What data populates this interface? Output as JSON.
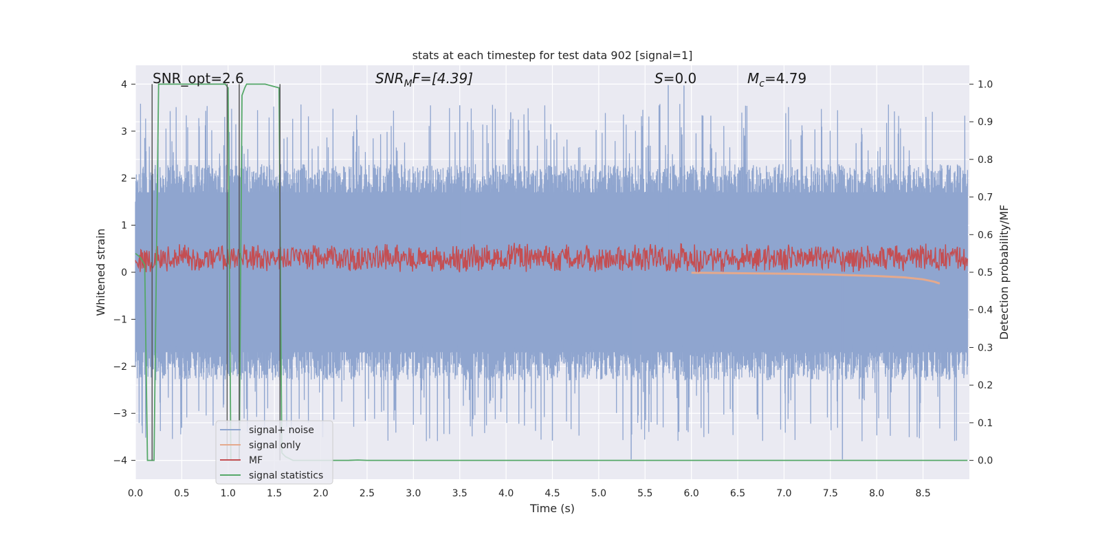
{
  "chart_data": {
    "type": "line",
    "title": "stats at each timestep for test data 902 [signal=1]",
    "xlabel": "Time (s)",
    "ylabel": "Whitened strain",
    "y2label": "Detection probability/MF",
    "xlim": [
      0.0,
      9.0
    ],
    "ylim": [
      -4.4,
      4.4
    ],
    "y2lim": [
      -0.05,
      1.05
    ],
    "grid": true,
    "legend_position": "lower-left",
    "x_ticks": [
      "0.0",
      "0.5",
      "1.0",
      "1.5",
      "2.0",
      "2.5",
      "3.0",
      "3.5",
      "4.0",
      "4.5",
      "5.0",
      "5.5",
      "6.0",
      "6.5",
      "7.0",
      "7.5",
      "8.0",
      "8.5"
    ],
    "y_ticks": [
      "−4",
      "−3",
      "−2",
      "−1",
      "0",
      "1",
      "2",
      "3",
      "4"
    ],
    "y2_ticks": [
      "0.0",
      "0.1",
      "0.2",
      "0.3",
      "0.4",
      "0.5",
      "0.6",
      "0.7",
      "0.8",
      "0.9",
      "1.0"
    ],
    "annotations": {
      "snr_opt": "SNR_opt=2.6",
      "snr_mf_main": "SNR",
      "snr_mf_sub": "M",
      "snr_mf_rest": "F=[4.39]",
      "s_main": "S",
      "s_rest": "=0.0",
      "mc_main": "M",
      "mc_sub": "c",
      "mc_rest": "=4.79"
    },
    "vertical_markers_x": [
      0.18,
      0.99,
      1.12,
      1.56
    ],
    "series": [
      {
        "name": "signal+ noise",
        "axis": "left",
        "color": "#8fa5cf",
        "description_shape": "noise band roughly within ±2.5 with spikes to ±4",
        "envelope_typical": 2.3,
        "spike_points": [
          [
            5.35,
            -3.98
          ],
          [
            5.75,
            3.98
          ],
          [
            5.92,
            3.97
          ],
          [
            7.63,
            -3.98
          ],
          [
            3.5,
            3.55
          ],
          [
            4.05,
            3.4
          ],
          [
            4.5,
            -3.58
          ]
        ]
      },
      {
        "name": "signal only",
        "axis": "left",
        "color": "#e5a98c",
        "x": [
          6.0,
          6.5,
          7.0,
          7.5,
          8.0,
          8.3,
          8.5,
          8.62,
          8.68
        ],
        "y": [
          -0.01,
          -0.02,
          -0.03,
          -0.05,
          -0.08,
          -0.11,
          -0.15,
          -0.2,
          -0.24
        ]
      },
      {
        "name": "MF",
        "axis": "left",
        "color": "#c44e52",
        "description_shape": "oscillates between about 0 and 0.8 across the whole window",
        "baseline": 0.3,
        "amplitude": 0.3
      },
      {
        "name": "signal statistics",
        "axis": "right",
        "color": "#55a868",
        "x": [
          0.0,
          0.05,
          0.1,
          0.13,
          0.18,
          0.2,
          0.25,
          0.28,
          0.35,
          0.5,
          0.8,
          0.97,
          1.0,
          1.03,
          1.08,
          1.12,
          1.15,
          1.18,
          1.2,
          1.25,
          1.4,
          1.55,
          1.58,
          1.62,
          1.7,
          2.0,
          2.3,
          2.4,
          2.5,
          9.0
        ],
        "y": [
          0.55,
          0.54,
          0.52,
          0.0,
          0.0,
          0.0,
          1.0,
          1.0,
          1.0,
          1.0,
          1.0,
          1.0,
          0.99,
          0.0,
          0.0,
          0.0,
          0.97,
          0.99,
          1.0,
          1.0,
          1.0,
          0.99,
          0.02,
          0.01,
          0.0,
          0.0,
          0.0,
          0.001,
          0.0,
          0.0
        ]
      }
    ]
  }
}
